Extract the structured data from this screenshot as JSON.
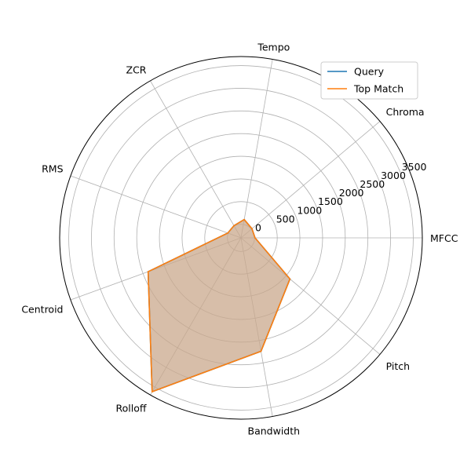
{
  "chart_data": {
    "type": "radar",
    "categories": [
      "MFCC",
      "Chroma",
      "Tempo",
      "ZCR",
      "RMS",
      "Centroid",
      "Rolloff",
      "Bandwidth",
      "Pitch"
    ],
    "radial_ticks": [
      0,
      500,
      1000,
      1500,
      2000,
      2500,
      3000,
      3500
    ],
    "rlim": [
      -300,
      3700
    ],
    "grid": true,
    "legend_position": "top-right",
    "series": [
      {
        "name": "Query",
        "color": "#1f77b4",
        "values": [
          10,
          15,
          110,
          10,
          10,
          1880,
          3620,
          2240,
          1110
        ]
      },
      {
        "name": "Top Match",
        "color": "#ff7f0e",
        "fill": "#c9a88c",
        "values": [
          10,
          15,
          110,
          10,
          10,
          1880,
          3620,
          2240,
          1110
        ]
      }
    ]
  }
}
